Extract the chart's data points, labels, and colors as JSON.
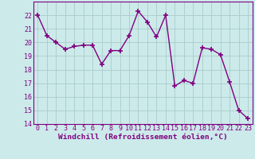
{
  "x": [
    0,
    1,
    2,
    3,
    4,
    5,
    6,
    7,
    8,
    9,
    10,
    11,
    12,
    13,
    14,
    15,
    16,
    17,
    18,
    19,
    20,
    21,
    22,
    23
  ],
  "y": [
    22.0,
    20.5,
    20.0,
    19.5,
    19.7,
    19.8,
    19.8,
    18.4,
    19.4,
    19.4,
    20.5,
    22.3,
    21.5,
    20.4,
    22.0,
    16.8,
    17.2,
    17.0,
    19.6,
    19.5,
    19.1,
    17.1,
    15.0,
    14.4
  ],
  "line_color": "#800080",
  "marker": "+",
  "marker_size": 4,
  "marker_lw": 1.2,
  "bg_color": "#cceaea",
  "grid_color": "#aacccc",
  "xlabel": "Windchill (Refroidissement éolien,°C)",
  "xlabel_fontsize": 6.8,
  "tick_fontsize": 6.0,
  "ylim": [
    14,
    23
  ],
  "yticks": [
    14,
    15,
    16,
    17,
    18,
    19,
    20,
    21,
    22
  ],
  "xlim": [
    -0.5,
    23.5
  ],
  "xticks": [
    0,
    1,
    2,
    3,
    4,
    5,
    6,
    7,
    8,
    9,
    10,
    11,
    12,
    13,
    14,
    15,
    16,
    17,
    18,
    19,
    20,
    21,
    22,
    23
  ],
  "spine_color": "#800080",
  "label_color": "#800080",
  "linewidth": 1.0
}
